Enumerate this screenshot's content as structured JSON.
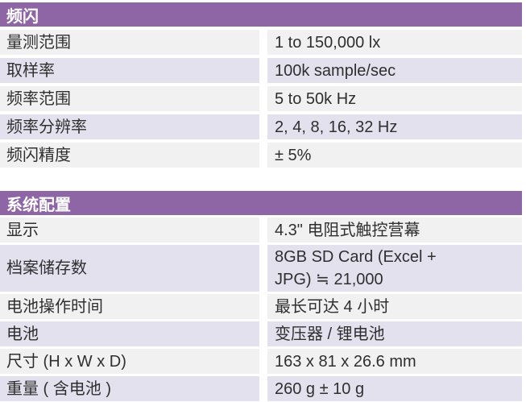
{
  "colors": {
    "header_bg": "#8e65a5",
    "header_text": "#ffffff",
    "row_gray": "#f1f1f1",
    "row_purple": "#e4e1ef",
    "text": "#2f2f2f"
  },
  "tables": [
    {
      "title": "频闪",
      "rows": [
        {
          "label": "量测范围",
          "value": "1 to 150,000 lx"
        },
        {
          "label": "取样率",
          "value": "100k sample/sec"
        },
        {
          "label": "频率范围",
          "value": "5 to 50k Hz"
        },
        {
          "label": "频率分辨率",
          "value": "2, 4, 8, 16, 32 Hz"
        },
        {
          "label": "频闪精度",
          "value": "± 5%"
        }
      ]
    },
    {
      "title": "系统配置",
      "rows": [
        {
          "label": "显示",
          "value": "4.3\" 电阻式触控营幕"
        },
        {
          "label": "档案储存数",
          "value": "8GB SD Card (Excel +\nJPG) ≒ 21,000"
        },
        {
          "label": "电池操作时间",
          "value": "最长可达 4 小时"
        },
        {
          "label": "电池",
          "value": "变压器 / 锂电池"
        },
        {
          "label": "尺寸 (H x W x D)",
          "value": "163 x 81 x 26.6 mm"
        },
        {
          "label": "重量 ( 含电池 )",
          "value": "260 g ± 10 g"
        }
      ]
    }
  ]
}
